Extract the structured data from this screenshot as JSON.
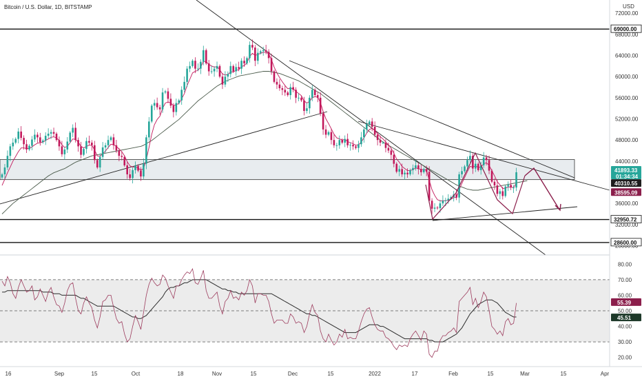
{
  "title": "Bitcoin / U.S. Dollar, 1D, BITSTAMP",
  "currency": "USD",
  "chart_data": [
    {
      "type": "candlestick",
      "title": "Bitcoin / U.S. Dollar, 1D, BITSTAMP",
      "price_ticks": [
        "72000.00",
        "68000.00",
        "64000.00",
        "60000.00",
        "56000.00",
        "52000.00",
        "48000.00",
        "44000.00",
        "40000.00",
        "36000.00",
        "32000.00",
        "28000.00"
      ],
      "ylim": [
        26500,
        74500
      ],
      "horizontal_levels": [
        {
          "value": 69000,
          "label": "69000.00"
        },
        {
          "value": 32950.72,
          "label": "32950.72"
        },
        {
          "value": 28600,
          "label": "28600.00"
        }
      ],
      "price_badges": [
        {
          "label": "41893.33",
          "sub": "01:34:34",
          "value": 41893.33,
          "color": "#26a69a"
        },
        {
          "label": "40310.55",
          "value": 40310.55,
          "color": "#1e1e1e"
        },
        {
          "label": "38595.09",
          "value": 38595.09,
          "color": "#8b1e4b"
        }
      ],
      "support_zone": [
        40500,
        44300
      ],
      "close_prices": [
        41500,
        42800,
        45000,
        46800,
        47500,
        48200,
        49600,
        48400,
        47200,
        46200,
        46900,
        48100,
        49000,
        48500,
        47600,
        47900,
        48800,
        49200,
        49500,
        49200,
        48000,
        46800,
        45300,
        46200,
        47700,
        49400,
        50300,
        48000,
        46800,
        45200,
        46300,
        47800,
        47500,
        47000,
        44200,
        42800,
        44800,
        46600,
        47000,
        48000,
        48500,
        47000,
        46000,
        45000,
        44800,
        43200,
        41500,
        40800,
        42300,
        43100,
        42200,
        41100,
        43500,
        48500,
        51500,
        54500,
        55000,
        54200,
        53800,
        57000,
        57200,
        55800,
        54500,
        53300,
        55000,
        55500,
        57500,
        59000,
        61500,
        62000,
        63000,
        61500,
        61500,
        62800,
        65000,
        62500,
        61000,
        61000,
        61500,
        62000,
        60000,
        58500,
        60000,
        60500,
        62000,
        61000,
        61800,
        61500,
        63000,
        62500,
        63500,
        66000,
        65500,
        63000,
        64500,
        64800,
        65000,
        64700,
        63500,
        61000,
        59000,
        58500,
        57800,
        57500,
        57000,
        56500,
        58000,
        57500,
        56000,
        56000,
        55500,
        53500,
        54000,
        56000,
        57500,
        56500,
        56000,
        53000,
        50000,
        49000,
        49500,
        48000,
        47000,
        47000,
        48000,
        47500,
        48200,
        47000,
        47100,
        46800,
        46500,
        47200,
        48500,
        50000,
        51000,
        51500,
        50500,
        49000,
        48000,
        47500,
        47500,
        46500,
        46000,
        45200,
        43500,
        42000,
        42500,
        41500,
        41800,
        41500,
        42300,
        42700,
        43200,
        42500,
        41900,
        42500,
        42000,
        36500,
        35000,
        35200,
        35100,
        36000,
        36500,
        36600,
        36900,
        37200,
        37700,
        37100,
        41500,
        42100,
        43000,
        44200,
        45000,
        42600,
        43500,
        42300,
        43200,
        44700,
        44200,
        42200,
        40100,
        39400,
        37800,
        38300,
        37400,
        39200,
        39500,
        39000,
        39000,
        41893
      ],
      "ema_fast": [
        39400,
        40600,
        41800,
        42900,
        44000,
        44900,
        45800,
        46500,
        46500,
        46400,
        46400,
        46700,
        47100,
        47400,
        47500,
        47600,
        47900,
        48200,
        48500,
        48600,
        48400,
        47900,
        47100,
        46600,
        46800,
        47500,
        48200,
        48100,
        47600,
        46800,
        46500,
        46800,
        47000,
        47000,
        46100,
        45000,
        44900,
        45400,
        45900,
        46600,
        47200,
        47100,
        46800,
        46300,
        45800,
        45000,
        43900,
        43100,
        42900,
        42900,
        42700,
        42300,
        42600,
        44300,
        46600,
        49100,
        50900,
        51900,
        52500,
        54000,
        55000,
        55200,
        55000,
        54500,
        54700,
        54900,
        55800,
        56800,
        58300,
        59500,
        60700,
        61000,
        61200,
        61800,
        62900,
        62800,
        62300,
        62000,
        61800,
        61900,
        61300,
        60500,
        60300,
        60400,
        60900,
        60900,
        61200,
        61300,
        61900,
        62100,
        62600,
        63800,
        64400,
        64000,
        64200,
        64400,
        64600,
        64600,
        64300,
        63200,
        61800,
        60700,
        59800,
        59000,
        58300,
        57700,
        57800,
        57700,
        57200,
        56800,
        56400,
        55400,
        55000,
        55300,
        56000,
        56200,
        56100,
        55100,
        53400,
        52000,
        51100,
        50100,
        49100,
        48400,
        48200,
        48000,
        48100,
        47700,
        47500,
        47300,
        47000,
        47100,
        47600,
        48400,
        49300,
        50000,
        50200,
        49800,
        49200,
        48600,
        48200,
        47600,
        47100,
        46400,
        45500,
        44400,
        43800,
        43000,
        42600,
        42200,
        42200,
        42400,
        42700,
        42600,
        42400,
        42400,
        42300,
        40400,
        38600,
        37500,
        36700,
        36500,
        36500,
        36500,
        36600,
        36800,
        37100,
        37100,
        38600,
        39800,
        40900,
        42000,
        43000,
        42900,
        43100,
        42800,
        42900,
        43500,
        43700,
        43200,
        42200,
        41200,
        40100,
        39500,
        38800,
        38900,
        39100,
        39100,
        39000,
        39900
      ],
      "sma_slow": [
        34000,
        34500,
        35000,
        35500,
        36000,
        36400,
        36800,
        37200,
        37600,
        38000,
        38400,
        38800,
        39200,
        39600,
        40000,
        40400,
        40800,
        41200,
        41500,
        41800,
        42000,
        42200,
        42400,
        42600,
        42900,
        43200,
        43500,
        43800,
        44000,
        44200,
        44400,
        44600,
        44800,
        45000,
        45100,
        45200,
        45300,
        45400,
        45500,
        45600,
        45700,
        45800,
        45900,
        46000,
        46100,
        46200,
        46300,
        46400,
        46500,
        46600,
        46700,
        46800,
        47000,
        47300,
        47600,
        47900,
        48300,
        48700,
        49100,
        49500,
        49900,
        50300,
        50700,
        51100,
        51500,
        51900,
        52400,
        52900,
        53400,
        53900,
        54400,
        54900,
        55400,
        55800,
        56200,
        56600,
        57000,
        57400,
        57800,
        58200,
        58500,
        58800,
        59100,
        59300,
        59500,
        59700,
        59900,
        60100,
        60200,
        60300,
        60400,
        60500,
        60600,
        60700,
        60800,
        60900,
        61000,
        61000,
        61000,
        60900,
        60800,
        60700,
        60600,
        60400,
        60200,
        60000,
        59800,
        59600,
        59400,
        59200,
        58900,
        58600,
        58300,
        58000,
        57700,
        57400,
        57100,
        56800,
        56400,
        56000,
        55600,
        55200,
        54800,
        54400,
        54000,
        53600,
        53200,
        52800,
        52400,
        52000,
        51600,
        51200,
        50800,
        50400,
        50000,
        49600,
        49200,
        48800,
        48400,
        48000,
        47600,
        47300,
        47000,
        46700,
        46400,
        46100,
        45800,
        45500,
        45200,
        44900,
        44600,
        44300,
        44000,
        43700,
        43400,
        43100,
        42800,
        42500,
        42200,
        41900,
        41600,
        41300,
        41000,
        40700,
        40400,
        40100,
        39800,
        39500,
        39300,
        39100,
        38900,
        38700,
        38600,
        38500,
        38500,
        38500,
        38600,
        38700,
        38800,
        38900,
        39000,
        39100,
        39200,
        39300,
        39400,
        39500,
        39600,
        39700,
        39800,
        39900,
        40000,
        40100,
        40200,
        40300
      ]
    },
    {
      "type": "line",
      "name": "rsi",
      "rsi_ticks": [
        "80.00",
        "70.00",
        "60.00",
        "50.00",
        "40.00",
        "30.00",
        "20.00"
      ],
      "ylim": [
        15,
        85
      ],
      "band": [
        30,
        70
      ],
      "midline": 50,
      "badges": [
        {
          "label": "55.39",
          "value": 55.39,
          "color": "#8b1e4b"
        },
        {
          "label": "45.51",
          "value": 45.51,
          "color": "#1e3a2a"
        }
      ],
      "rsi_values": [
        69,
        66,
        72,
        68,
        61,
        58,
        65,
        70,
        66,
        62,
        63,
        66,
        57,
        59,
        64,
        60,
        56,
        62,
        65,
        59,
        54,
        53,
        49,
        55,
        63,
        67,
        68,
        58,
        50,
        48,
        55,
        59,
        55,
        52,
        44,
        39,
        46,
        56,
        57,
        60,
        60,
        52,
        45,
        42,
        43,
        35,
        30,
        32,
        40,
        47,
        43,
        38,
        49,
        60,
        67,
        71,
        68,
        66,
        67,
        73,
        71,
        66,
        62,
        58,
        66,
        66,
        70,
        73,
        75,
        74,
        77,
        68,
        67,
        71,
        76,
        63,
        58,
        58,
        60,
        62,
        53,
        48,
        56,
        58,
        63,
        58,
        59,
        57,
        62,
        60,
        63,
        70,
        66,
        55,
        61,
        61,
        60,
        60,
        56,
        48,
        42,
        44,
        44,
        44,
        42,
        42,
        48,
        46,
        42,
        43,
        42,
        36,
        40,
        48,
        54,
        49,
        47,
        37,
        32,
        30,
        35,
        31,
        28,
        30,
        35,
        33,
        38,
        32,
        33,
        32,
        32,
        37,
        43,
        48,
        51,
        52,
        46,
        41,
        38,
        37,
        37,
        33,
        32,
        30,
        27,
        25,
        28,
        27,
        28,
        27,
        32,
        35,
        37,
        34,
        31,
        37,
        35,
        22,
        20,
        24,
        24,
        31,
        34,
        34,
        36,
        37,
        39,
        36,
        56,
        58,
        60,
        62,
        65,
        54,
        58,
        52,
        56,
        62,
        59,
        50,
        40,
        38,
        35,
        37,
        34,
        43,
        45,
        41,
        42,
        55
      ],
      "rsi_ma": [
        62,
        62,
        63,
        63,
        63,
        63,
        63,
        63,
        63,
        63,
        63,
        63,
        63,
        63,
        63,
        62,
        62,
        62,
        62,
        61,
        61,
        61,
        60,
        60,
        60,
        60,
        60,
        60,
        59,
        58,
        58,
        57,
        56,
        55,
        54,
        53,
        53,
        53,
        53,
        53,
        53,
        53,
        52,
        51,
        50,
        49,
        48,
        47,
        46,
        46,
        45,
        45,
        46,
        47,
        49,
        51,
        53,
        55,
        57,
        59,
        62,
        64,
        65,
        65,
        66,
        66,
        67,
        68,
        68,
        69,
        70,
        70,
        70,
        70,
        70,
        70,
        69,
        68,
        67,
        66,
        65,
        64,
        64,
        63,
        63,
        62,
        62,
        61,
        61,
        61,
        61,
        61,
        61,
        61,
        61,
        61,
        61,
        61,
        61,
        61,
        60,
        59,
        58,
        57,
        56,
        55,
        54,
        53,
        52,
        51,
        50,
        49,
        48,
        48,
        47,
        47,
        46,
        45,
        44,
        43,
        42,
        41,
        40,
        39,
        38,
        37,
        36,
        36,
        36,
        36,
        36,
        37,
        38,
        39,
        40,
        41,
        41,
        41,
        41,
        40,
        40,
        39,
        38,
        37,
        36,
        35,
        34,
        33,
        32,
        32,
        32,
        32,
        32,
        32,
        32,
        32,
        32,
        31,
        31,
        30,
        30,
        30,
        30,
        31,
        32,
        33,
        34,
        35,
        37,
        39,
        42,
        45,
        48,
        50,
        52,
        54,
        55,
        56,
        57,
        57,
        57,
        56,
        55,
        53,
        51,
        49,
        48,
        47,
        46,
        46
      ]
    }
  ],
  "x_axis_ticks": [
    "16",
    "Sep",
    "15",
    "Oct",
    "18",
    "Nov",
    "15",
    "Dec",
    "15",
    "2022",
    "17",
    "Feb",
    "15",
    "Mar",
    "15",
    "Apr"
  ]
}
